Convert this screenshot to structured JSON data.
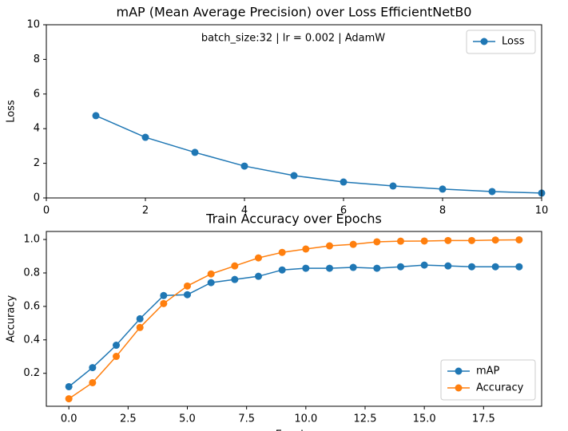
{
  "chart_data": [
    {
      "type": "line",
      "title": "mAP (Mean Average Precision) over Loss EfficientNetB0",
      "annotation": "batch_size:32 | lr = 0.002 | AdamW",
      "ylabel": "Loss",
      "x": [
        1,
        2,
        3,
        4,
        5,
        6,
        7,
        8,
        9,
        10
      ],
      "series": [
        {
          "name": "Loss",
          "color": "#1f77b4",
          "values": [
            4.75,
            3.5,
            2.63,
            1.84,
            1.29,
            0.92,
            0.69,
            0.51,
            0.37,
            0.28
          ]
        }
      ],
      "xlim": [
        0,
        10
      ],
      "ylim": [
        0,
        10
      ],
      "xticks": [
        0,
        2,
        4,
        6,
        8,
        10
      ],
      "yticks": [
        0,
        2,
        4,
        6,
        8,
        10
      ],
      "legend": "upper-right"
    },
    {
      "type": "line",
      "title": "Train Accuracy over Epochs",
      "xlabel": "Epochs",
      "ylabel": "Accuracy",
      "x": [
        0,
        1,
        2,
        3,
        4,
        5,
        6,
        7,
        8,
        9,
        10,
        11,
        12,
        13,
        14,
        15,
        16,
        17,
        18,
        19
      ],
      "series": [
        {
          "name": "mAP",
          "color": "#1f77b4",
          "values": [
            0.12,
            0.234,
            0.368,
            0.526,
            0.665,
            0.67,
            0.742,
            0.761,
            0.78,
            0.818,
            0.828,
            0.828,
            0.833,
            0.828,
            0.837,
            0.847,
            0.842,
            0.837,
            0.837,
            0.837
          ]
        },
        {
          "name": "Accuracy",
          "color": "#ff7f0e",
          "values": [
            0.048,
            0.144,
            0.301,
            0.474,
            0.617,
            0.722,
            0.794,
            0.842,
            0.89,
            0.923,
            0.943,
            0.962,
            0.971,
            0.986,
            0.99,
            0.991,
            0.994,
            0.994,
            0.997,
            0.998
          ]
        }
      ],
      "xlim": [
        -0.95,
        19.95
      ],
      "ylim": [
        0.003,
        1.048
      ],
      "xticks": [
        {
          "value": 0,
          "label": "0.0"
        },
        2.5,
        {
          "value": 5,
          "label": "5.0"
        },
        7.5,
        {
          "value": 10,
          "label": "10.0"
        },
        12.5,
        {
          "value": 15,
          "label": "15.0"
        },
        17.5
      ],
      "yticks": [
        0.2,
        0.4,
        0.6,
        0.8,
        {
          "value": 1,
          "label": "1.0"
        }
      ],
      "legend": "lower-right"
    }
  ]
}
